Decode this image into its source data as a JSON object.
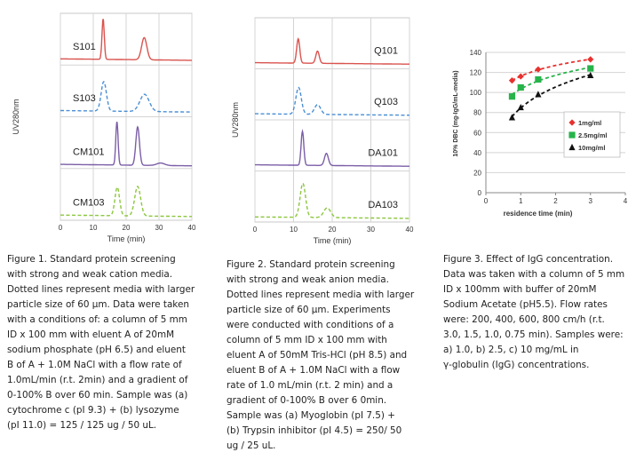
{
  "chart_data": [
    {
      "type": "line",
      "ylabel": "UV280nm",
      "xlabel": "Time (min)",
      "xticks": [
        "0",
        "10",
        "20",
        "30",
        "40"
      ],
      "xlim": [
        0,
        40
      ],
      "grid": true,
      "series": [
        {
          "name": "S101",
          "color": "#d9534f",
          "style": "solid",
          "baseline": 0.12,
          "peaks": [
            {
              "t": 13,
              "h": 0.82,
              "w": 0.35
            },
            {
              "t": 25.5,
              "h": 0.45,
              "w": 0.8
            }
          ]
        },
        {
          "name": "S103",
          "color": "#4a8fd4",
          "style": "dashed",
          "baseline": 0.12,
          "peaks": [
            {
              "t": 13.2,
              "h": 0.6,
              "w": 0.8
            },
            {
              "t": 25.6,
              "h": 0.35,
              "w": 1.4
            }
          ]
        },
        {
          "name": "CM101",
          "color": "#7b5ea7",
          "style": "solid",
          "baseline": 0.08,
          "peaks": [
            {
              "t": 17.2,
              "h": 0.88,
              "w": 0.35
            },
            {
              "t": 23.5,
              "h": 0.78,
              "w": 0.55
            },
            {
              "t": 30.5,
              "h": 0.05,
              "w": 1.2
            }
          ]
        },
        {
          "name": "CM103",
          "color": "#8cc63f",
          "style": "dashed",
          "baseline": 0.1,
          "peaks": [
            {
              "t": 17.3,
              "h": 0.58,
              "w": 0.7
            },
            {
              "t": 23.5,
              "h": 0.6,
              "w": 0.9
            }
          ]
        }
      ]
    },
    {
      "type": "line",
      "ylabel": "UV280nm",
      "xlabel": "Time (min)",
      "xticks": [
        "0",
        "10",
        "20",
        "30",
        "40"
      ],
      "xlim": [
        0,
        40
      ],
      "grid": true,
      "series": [
        {
          "name": "Q101",
          "color": "#d9534f",
          "style": "solid",
          "baseline": 0.12,
          "peaks": [
            {
              "t": 11.2,
              "h": 0.5,
              "w": 0.4
            },
            {
              "t": 16.2,
              "h": 0.25,
              "w": 0.45
            }
          ]
        },
        {
          "name": "Q103",
          "color": "#4a8fd4",
          "style": "dashed",
          "baseline": 0.12,
          "peaks": [
            {
              "t": 11.3,
              "h": 0.55,
              "w": 0.7
            },
            {
              "t": 16.2,
              "h": 0.2,
              "w": 0.8
            }
          ]
        },
        {
          "name": "DA101",
          "color": "#7b5ea7",
          "style": "solid",
          "baseline": 0.12,
          "peaks": [
            {
              "t": 12.3,
              "h": 0.7,
              "w": 0.35
            },
            {
              "t": 18.5,
              "h": 0.25,
              "w": 0.5
            }
          ]
        },
        {
          "name": "DA103",
          "color": "#8cc63f",
          "style": "dashed",
          "baseline": 0.1,
          "peaks": [
            {
              "t": 12.4,
              "h": 0.7,
              "w": 0.7
            },
            {
              "t": 18.7,
              "h": 0.2,
              "w": 0.9
            }
          ]
        }
      ]
    },
    {
      "type": "scatter",
      "ylabel": "10% DBC (mg-IgG/mL-media)",
      "xlabel": "residence time (min)",
      "xlim": [
        0,
        4
      ],
      "ylim": [
        0,
        140
      ],
      "xticks": [
        "0",
        "1",
        "2",
        "3",
        "4"
      ],
      "yticks": [
        "0",
        "20",
        "40",
        "60",
        "80",
        "100",
        "120",
        "140"
      ],
      "grid": true,
      "legend_position": "bottom-right",
      "series": [
        {
          "name": "1mg/ml",
          "color": "#e8312e",
          "marker": "diamond",
          "x": [
            0.75,
            1.0,
            1.5,
            3.0
          ],
          "y": [
            112,
            116,
            123,
            133
          ]
        },
        {
          "name": "2.5mg/ml",
          "color": "#27b34a",
          "marker": "square",
          "x": [
            0.75,
            1.0,
            1.5,
            3.0
          ],
          "y": [
            96,
            105,
            113,
            124
          ]
        },
        {
          "name": "10mg/ml",
          "color": "#111111",
          "marker": "triangle",
          "x": [
            0.75,
            1.0,
            1.5,
            3.0
          ],
          "y": [
            75,
            85,
            98,
            117
          ]
        }
      ]
    }
  ],
  "captions": {
    "fig1": [
      "Figure 1. Standard protein screening",
      "with strong and weak cation media.",
      "Dotted lines represent media with larger",
      "particle size of 60 µm. Data were taken",
      "with a conditions of: a column of 5 mm",
      "ID x 100 mm with eluent A of 20mM",
      "sodium phosphate (pH 6.5) and eluent",
      "B of A + 1.0M NaCl with a flow rate of",
      "1.0mL/min (r.t. 2min) and a gradient of",
      "0-100% B over 60 min. Sample was (a)",
      "cytochrome c (pI 9.3) + (b) lysozyme",
      "(pI 11.0) = 125 / 125 ug / 50 uL."
    ],
    "fig2": [
      "Figure 2. Standard protein screening",
      "with strong and weak anion media.",
      "Dotted lines represent media with larger",
      "particle size of 60 µm. Experiments",
      "were conducted with conditions of a",
      "column of 5 mm ID x 100 mm with",
      "eluent A of 50mM Tris-HCl (pH 8.5) and",
      "eluent B of A + 1.0M NaCl with a flow",
      "rate of 1.0 mL/min (r.t. 2 min) and a",
      "gradient of 0-100% B over 6 0min.",
      "Sample was (a) Myoglobin (pI 7.5) +",
      "(b) Trypsin inhibitor (pI 4.5) = 250/ 50",
      "ug / 25 uL."
    ],
    "fig3": [
      "Figure 3. Effect of IgG concentration.",
      "Data was taken with a column of 5 mm",
      "ID x 100mm with buffer of 20mM",
      "Sodium Acetate (pH5.5). Flow rates",
      "were: 200, 400, 600, 800 cm/h (r.t.",
      "3.0, 1.5, 1.0, 0.75 min). Samples were:",
      "a) 1.0, b) 2.5, c) 10 mg/mL in",
      "γ-globulin (IgG) concentrations."
    ]
  }
}
